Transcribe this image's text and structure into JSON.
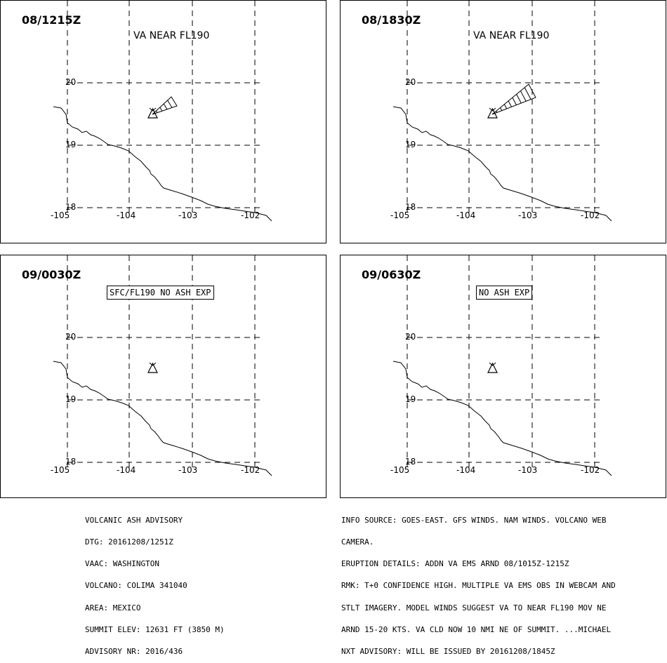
{
  "panels": [
    {
      "time": "08/1215Z",
      "label": "VA NEAR FL190",
      "boxed": false,
      "plume": "small"
    },
    {
      "time": "08/1830Z",
      "label": "VA NEAR FL190",
      "boxed": false,
      "plume": "large"
    },
    {
      "time": "09/0030Z",
      "label": "SFC/FL190 NO ASH EXP",
      "boxed": true,
      "plume": "none"
    },
    {
      "time": "09/0630Z",
      "label": "NO ASH EXP",
      "boxed": true,
      "plume": "none"
    }
  ],
  "lat_labels": [
    "20",
    "19",
    "18"
  ],
  "lon_labels": [
    "-105",
    "-104",
    "-103",
    "-102"
  ],
  "advisory_left": [
    "VOLCANIC ASH ADVISORY",
    "DTG: 20161208/1251Z",
    "VAAC: WASHINGTON",
    "VOLCANO: COLIMA 341040",
    "AREA: MEXICO",
    "SUMMIT ELEV: 12631 FT (3850 M)",
    "ADVISORY NR: 2016/436"
  ],
  "advisory_right": [
    "INFO SOURCE: GOES-EAST. GFS WINDS. NAM WINDS. VOLCANO WEB",
    "CAMERA.",
    "ERUPTION DETAILS: ADDN VA EMS ARND 08/1015Z-1215Z",
    "RMK: T+0 CONFIDENCE HIGH. MULTIPLE VA EMS OBS IN WEBCAM AND",
    "STLT IMAGERY. MODEL WINDS SUGGEST VA TO NEAR FL190 MOV NE",
    "ARND 15-20 KTS. VA CLD NOW 10 NMI NE OF SUMMIT. ...MICHAEL",
    "NXT ADVISORY: WILL BE ISSUED BY 20161208/1845Z"
  ]
}
